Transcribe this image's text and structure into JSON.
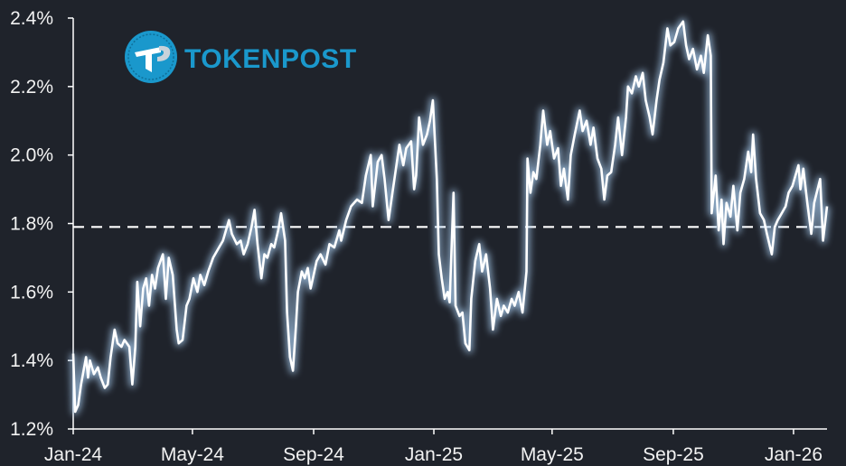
{
  "logo": {
    "text": "TOKENPOST",
    "color": "#1a98cc"
  },
  "colors": {
    "background": "#1f232b",
    "line": "#ffffff",
    "glow": "#9fc4e8",
    "axis": "#ffffff"
  },
  "chart_data": {
    "type": "line",
    "title": "",
    "xlabel": "",
    "ylabel": "",
    "xlim": [
      "2024-01-01",
      "2026-02-04"
    ],
    "ylim": [
      1.2,
      2.4
    ],
    "grid": false,
    "x_ticks": [
      {
        "date": "2024-01-01",
        "label": "Jan-24"
      },
      {
        "date": "2024-05-01",
        "label": "May-24"
      },
      {
        "date": "2024-09-01",
        "label": "Sep-24"
      },
      {
        "date": "2025-01-01",
        "label": "Jan-25"
      },
      {
        "date": "2025-05-01",
        "label": "May-25"
      },
      {
        "date": "2025-09-01",
        "label": "Sep-25"
      },
      {
        "date": "2026-01-01",
        "label": "Jan-26"
      }
    ],
    "y_ticks": [
      {
        "value": 1.2,
        "label": "1.2%"
      },
      {
        "value": 1.4,
        "label": "1.4%"
      },
      {
        "value": 1.6,
        "label": "1.6%"
      },
      {
        "value": 1.8,
        "label": "1.8%"
      },
      {
        "value": 2.0,
        "label": "2.0%"
      },
      {
        "value": 2.2,
        "label": "2.2%"
      },
      {
        "value": 2.4,
        "label": "2.4%"
      }
    ],
    "reference_line": {
      "value": 1.79,
      "style": "dashed"
    },
    "series": [
      {
        "x": [
          "2024-01-01",
          "2024-01-03",
          "2024-01-06",
          "2024-01-09",
          "2024-01-14",
          "2024-01-16",
          "2024-01-18",
          "2024-01-22",
          "2024-01-26",
          "2024-01-29",
          "2024-02-02",
          "2024-02-05",
          "2024-02-08",
          "2024-02-12",
          "2024-02-15",
          "2024-02-19",
          "2024-02-22",
          "2024-02-27",
          "2024-03-01",
          "2024-03-04",
          "2024-03-06",
          "2024-03-09",
          "2024-03-12",
          "2024-03-15",
          "2024-03-18",
          "2024-03-21",
          "2024-03-24",
          "2024-03-27",
          "2024-04-01",
          "2024-04-04",
          "2024-04-07",
          "2024-04-11",
          "2024-04-15",
          "2024-04-17",
          "2024-04-21",
          "2024-04-25",
          "2024-04-28",
          "2024-05-02",
          "2024-05-06",
          "2024-05-09",
          "2024-05-13",
          "2024-05-17",
          "2024-05-22",
          "2024-05-28",
          "2024-06-01",
          "2024-06-07",
          "2024-06-10",
          "2024-06-15",
          "2024-06-19",
          "2024-06-22",
          "2024-06-26",
          "2024-06-30",
          "2024-07-03",
          "2024-07-06",
          "2024-07-10",
          "2024-07-13",
          "2024-07-16",
          "2024-07-20",
          "2024-07-23",
          "2024-07-27",
          "2024-07-30",
          "2024-08-03",
          "2024-08-05",
          "2024-08-08",
          "2024-08-11",
          "2024-08-14",
          "2024-08-16",
          "2024-08-20",
          "2024-08-23",
          "2024-08-26",
          "2024-08-29",
          "2024-09-01",
          "2024-09-04",
          "2024-09-08",
          "2024-09-13",
          "2024-09-17",
          "2024-09-22",
          "2024-09-27",
          "2024-09-29",
          "2024-10-04",
          "2024-10-09",
          "2024-10-15",
          "2024-10-20",
          "2024-10-24",
          "2024-10-29",
          "2024-10-31",
          "2024-11-05",
          "2024-11-09",
          "2024-11-12",
          "2024-11-16",
          "2024-11-20",
          "2024-11-23",
          "2024-11-27",
          "2024-12-01",
          "2024-12-04",
          "2024-12-09",
          "2024-12-12",
          "2024-12-14",
          "2024-12-17",
          "2024-12-21",
          "2024-12-25",
          "2024-12-28",
          "2024-12-31",
          "2025-01-04",
          "2025-01-06",
          "2025-01-09",
          "2025-01-12",
          "2025-01-15",
          "2025-01-17",
          "2025-01-21",
          "2025-01-23",
          "2025-01-27",
          "2025-01-30",
          "2025-02-02",
          "2025-02-06",
          "2025-02-08",
          "2025-02-12",
          "2025-02-16",
          "2025-02-19",
          "2025-02-23",
          "2025-02-27",
          "2025-03-02",
          "2025-03-06",
          "2025-03-10",
          "2025-03-13",
          "2025-03-17",
          "2025-03-21",
          "2025-03-24",
          "2025-03-28",
          "2025-04-01",
          "2025-04-05",
          "2025-04-06",
          "2025-04-09",
          "2025-04-12",
          "2025-04-15",
          "2025-04-19",
          "2025-04-22",
          "2025-04-26",
          "2025-04-29",
          "2025-05-03",
          "2025-05-07",
          "2025-05-10",
          "2025-05-13",
          "2025-05-17",
          "2025-05-20",
          "2025-05-24",
          "2025-05-29",
          "2025-06-01",
          "2025-06-05",
          "2025-06-09",
          "2025-06-12",
          "2025-06-16",
          "2025-06-20",
          "2025-06-23",
          "2025-06-26",
          "2025-06-30",
          "2025-07-04",
          "2025-07-07",
          "2025-07-11",
          "2025-07-15",
          "2025-07-17",
          "2025-07-21",
          "2025-07-25",
          "2025-07-28",
          "2025-08-01",
          "2025-08-04",
          "2025-08-08",
          "2025-08-11",
          "2025-08-15",
          "2025-08-18",
          "2025-08-22",
          "2025-08-26",
          "2025-08-29",
          "2025-09-02",
          "2025-09-06",
          "2025-09-11",
          "2025-09-14",
          "2025-09-17",
          "2025-09-21",
          "2025-09-25",
          "2025-09-29",
          "2025-10-02",
          "2025-10-06",
          "2025-10-09",
          "2025-10-10",
          "2025-10-14",
          "2025-10-17",
          "2025-10-20",
          "2025-10-22",
          "2025-10-25",
          "2025-10-29",
          "2025-11-01",
          "2025-11-05",
          "2025-11-08",
          "2025-11-12",
          "2025-11-16",
          "2025-11-19",
          "2025-11-21",
          "2025-11-24",
          "2025-11-28",
          "2025-12-02",
          "2025-12-05",
          "2025-12-10",
          "2025-12-13",
          "2025-12-16",
          "2025-12-20",
          "2025-12-24",
          "2025-12-27",
          "2025-12-31",
          "2026-01-06",
          "2026-01-08",
          "2026-01-11",
          "2026-01-15",
          "2026-01-19",
          "2026-01-22",
          "2026-01-28",
          "2026-01-31",
          "2026-02-04"
        ],
        "y": [
          1.42,
          1.25,
          1.27,
          1.33,
          1.41,
          1.35,
          1.4,
          1.36,
          1.38,
          1.35,
          1.32,
          1.33,
          1.41,
          1.49,
          1.45,
          1.44,
          1.46,
          1.44,
          1.33,
          1.44,
          1.63,
          1.5,
          1.61,
          1.64,
          1.56,
          1.65,
          1.61,
          1.67,
          1.71,
          1.58,
          1.7,
          1.65,
          1.49,
          1.45,
          1.46,
          1.56,
          1.58,
          1.64,
          1.6,
          1.65,
          1.62,
          1.66,
          1.7,
          1.73,
          1.75,
          1.81,
          1.77,
          1.74,
          1.75,
          1.71,
          1.74,
          1.79,
          1.84,
          1.74,
          1.64,
          1.71,
          1.7,
          1.74,
          1.73,
          1.78,
          1.83,
          1.75,
          1.54,
          1.41,
          1.37,
          1.5,
          1.6,
          1.66,
          1.64,
          1.67,
          1.61,
          1.65,
          1.69,
          1.71,
          1.68,
          1.74,
          1.73,
          1.78,
          1.75,
          1.81,
          1.85,
          1.87,
          1.86,
          1.94,
          2.0,
          1.85,
          1.98,
          2.0,
          1.93,
          1.81,
          1.89,
          1.95,
          2.03,
          1.97,
          2.02,
          2.04,
          1.9,
          1.94,
          2.11,
          2.03,
          2.06,
          2.1,
          2.16,
          1.93,
          1.71,
          1.64,
          1.58,
          1.6,
          1.57,
          1.89,
          1.56,
          1.53,
          1.54,
          1.45,
          1.43,
          1.58,
          1.69,
          1.74,
          1.66,
          1.71,
          1.61,
          1.49,
          1.58,
          1.53,
          1.56,
          1.54,
          1.58,
          1.56,
          1.6,
          1.54,
          1.66,
          1.99,
          1.89,
          1.95,
          1.93,
          2.03,
          2.13,
          2.03,
          2.07,
          1.99,
          2.02,
          1.91,
          1.96,
          1.87,
          2.0,
          2.06,
          2.13,
          2.07,
          2.1,
          2.03,
          2.08,
          1.99,
          1.96,
          1.87,
          1.94,
          1.95,
          2.03,
          2.11,
          2.0,
          2.11,
          2.2,
          2.18,
          2.23,
          2.2,
          2.24,
          2.16,
          2.11,
          2.06,
          2.16,
          2.22,
          2.27,
          2.37,
          2.32,
          2.33,
          2.37,
          2.39,
          2.32,
          2.28,
          2.31,
          2.25,
          2.29,
          2.24,
          2.35,
          2.29,
          1.83,
          1.94,
          1.78,
          1.87,
          1.74,
          1.86,
          1.82,
          1.91,
          1.78,
          1.89,
          1.93,
          2.01,
          1.95,
          2.06,
          1.93,
          1.83,
          1.81,
          1.77,
          1.71,
          1.79,
          1.81,
          1.83,
          1.85,
          1.89,
          1.91,
          1.97,
          1.9,
          1.96,
          1.86,
          1.77,
          1.86,
          1.93,
          1.75,
          1.85
        ]
      }
    ]
  }
}
